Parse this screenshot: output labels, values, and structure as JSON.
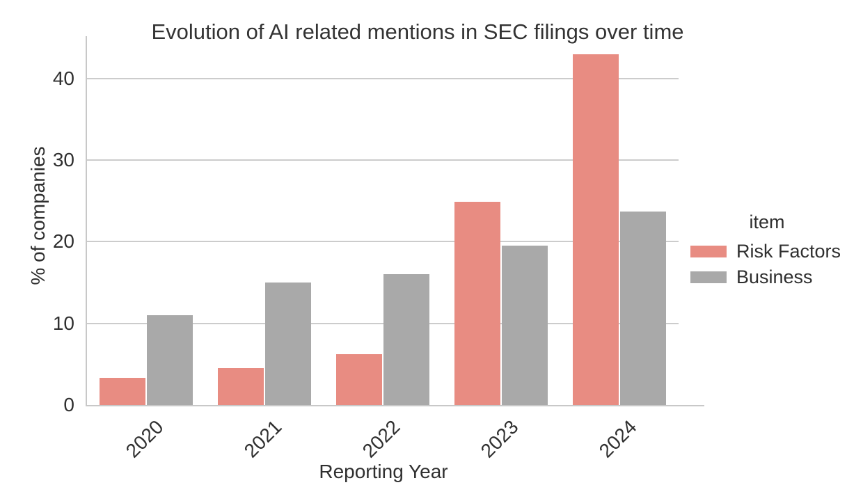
{
  "chart_data": {
    "type": "bar",
    "title": "Evolution of AI related mentions in SEC filings over time",
    "xlabel": "Reporting Year",
    "ylabel": "% of companies",
    "legend_title": "item",
    "legend_position": "right of plot",
    "grid": "horizontal gridlines on",
    "categories": [
      "2020",
      "2021",
      "2022",
      "2023",
      "2024"
    ],
    "series": [
      {
        "name": "Risk Factors",
        "color": "#E88C82",
        "values": [
          3.3,
          4.5,
          6.2,
          24.9,
          43.0
        ]
      },
      {
        "name": "Business",
        "color": "#A9A9A9",
        "values": [
          11.0,
          15.0,
          16.0,
          19.5,
          23.7
        ]
      }
    ],
    "yticks": [
      0,
      10,
      20,
      30,
      40
    ],
    "ylim": [
      0,
      45.2
    ]
  }
}
